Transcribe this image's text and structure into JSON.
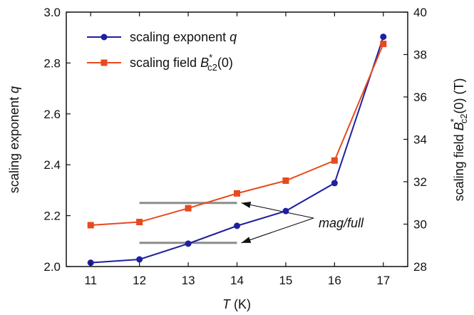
{
  "chart_data": {
    "type": "line",
    "x": [
      11,
      12,
      13,
      14,
      15,
      16,
      17
    ],
    "xlabel": {
      "var": "T",
      "unit": " (K)"
    },
    "xlim": [
      10.5,
      17.5
    ],
    "ylabel_left": {
      "prefix": "scaling exponent ",
      "var": "q"
    },
    "ylim_left": [
      2.0,
      3.0
    ],
    "yticks_left": [
      "2.0",
      "2.2",
      "2.4",
      "2.6",
      "2.8",
      "3.0"
    ],
    "ylabel_right": {
      "prefix": "scaling field ",
      "var": "B",
      "sup": "*",
      "sub": "c2",
      "suffix": "(0) (T)"
    },
    "ylim_right": [
      28,
      40
    ],
    "yticks_right": [
      "28",
      "30",
      "32",
      "34",
      "36",
      "38",
      "40"
    ],
    "xticks": [
      "11",
      "12",
      "13",
      "14",
      "15",
      "16",
      "17"
    ],
    "series": [
      {
        "name": {
          "prefix": "scaling exponent ",
          "var": "q"
        },
        "axis": "left",
        "marker": "circle",
        "color": "#1f1fa0",
        "values": [
          2.015,
          2.028,
          2.09,
          2.16,
          2.218,
          2.328,
          2.903
        ]
      },
      {
        "name": {
          "prefix": "scaling field ",
          "var": "B",
          "sup": "*",
          "sub": "c2",
          "suffix": "(0)"
        },
        "axis": "right",
        "marker": "square",
        "color": "#e8491d",
        "values": [
          29.95,
          30.1,
          30.75,
          31.45,
          32.05,
          33.0,
          38.5
        ]
      }
    ],
    "annotations": [
      {
        "text": "mag/full",
        "hlines": [
          {
            "axis": "left",
            "y": 2.25,
            "x_from": 12,
            "x_to": 14
          },
          {
            "axis": "left",
            "y": 2.093,
            "x_from": 12,
            "x_to": 14
          }
        ],
        "line_color": "#8c8c8c"
      }
    ],
    "legend": "top-left",
    "grid": false
  }
}
